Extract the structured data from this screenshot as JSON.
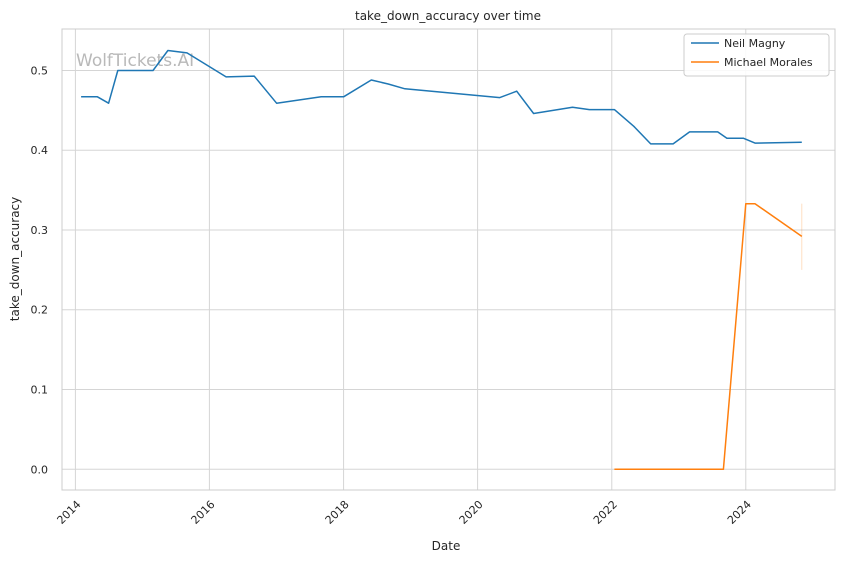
{
  "chart_data": {
    "type": "line",
    "title": "take_down_accuracy over time",
    "xlabel": "Date",
    "ylabel": "take_down_accuracy",
    "watermark": "WolfTickets.AI",
    "x_ticks": [
      "2014",
      "2016",
      "2018",
      "2020",
      "2022",
      "2024"
    ],
    "y_ticks": [
      "0.0",
      "0.1",
      "0.2",
      "0.3",
      "0.4",
      "0.5"
    ],
    "xlim": [
      "2013-10-20",
      "2025-05-01"
    ],
    "ylim": [
      -0.026,
      0.552
    ],
    "grid": true,
    "legend_position": "top-right",
    "series": [
      {
        "name": "Neil Magny",
        "color": "#1f77b4",
        "points": [
          [
            "2014-02-01",
            0.467
          ],
          [
            "2014-05-01",
            0.467
          ],
          [
            "2014-07-01",
            0.459
          ],
          [
            "2014-08-20",
            0.5
          ],
          [
            "2015-02-28",
            0.5
          ],
          [
            "2015-05-20",
            0.525
          ],
          [
            "2015-09-01",
            0.522
          ],
          [
            "2016-04-01",
            0.492
          ],
          [
            "2016-09-01",
            0.493
          ],
          [
            "2017-01-01",
            0.459
          ],
          [
            "2017-09-01",
            0.467
          ],
          [
            "2018-01-01",
            0.467
          ],
          [
            "2018-06-01",
            0.488
          ],
          [
            "2018-09-01",
            0.483
          ],
          [
            "2018-12-01",
            0.477
          ],
          [
            "2020-05-01",
            0.466
          ],
          [
            "2020-08-01",
            0.474
          ],
          [
            "2020-11-01",
            0.446
          ],
          [
            "2021-06-01",
            0.454
          ],
          [
            "2021-09-01",
            0.451
          ],
          [
            "2022-01-15",
            0.451
          ],
          [
            "2022-05-01",
            0.43
          ],
          [
            "2022-08-01",
            0.408
          ],
          [
            "2022-12-01",
            0.408
          ],
          [
            "2023-03-01",
            0.423
          ],
          [
            "2023-08-01",
            0.423
          ],
          [
            "2023-09-20",
            0.415
          ],
          [
            "2023-12-20",
            0.415
          ],
          [
            "2024-02-20",
            0.409
          ],
          [
            "2024-11-01",
            0.41
          ]
        ]
      },
      {
        "name": "Michael Morales",
        "color": "#ff7f0e",
        "points": [
          [
            "2022-01-15",
            0.0
          ],
          [
            "2023-09-01",
            0.0
          ],
          [
            "2024-01-01",
            0.333
          ],
          [
            "2024-02-20",
            0.333
          ],
          [
            "2024-11-01",
            0.292
          ]
        ],
        "error_bar": {
          "x": "2024-11-01",
          "low": 0.25,
          "high": 0.333
        }
      }
    ]
  }
}
